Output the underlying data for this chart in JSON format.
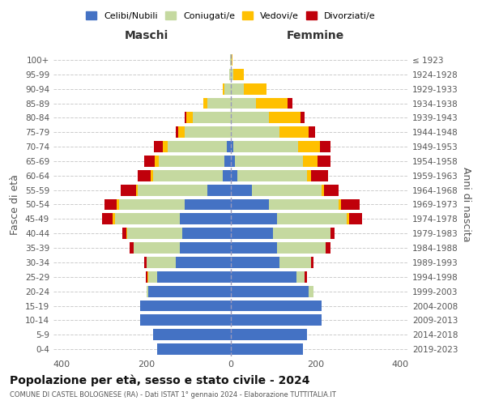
{
  "age_groups": [
    "0-4",
    "5-9",
    "10-14",
    "15-19",
    "20-24",
    "25-29",
    "30-34",
    "35-39",
    "40-44",
    "45-49",
    "50-54",
    "55-59",
    "60-64",
    "65-69",
    "70-74",
    "75-79",
    "80-84",
    "85-89",
    "90-94",
    "95-99",
    "100+"
  ],
  "birth_years": [
    "2019-2023",
    "2014-2018",
    "2009-2013",
    "2004-2008",
    "1999-2003",
    "1994-1998",
    "1989-1993",
    "1984-1988",
    "1979-1983",
    "1974-1978",
    "1969-1973",
    "1964-1968",
    "1959-1963",
    "1954-1958",
    "1949-1953",
    "1944-1948",
    "1939-1943",
    "1934-1938",
    "1929-1933",
    "1924-1928",
    "≤ 1923"
  ],
  "maschi": {
    "celibi": [
      175,
      185,
      215,
      215,
      195,
      175,
      130,
      120,
      115,
      120,
      110,
      55,
      20,
      15,
      10,
      0,
      0,
      0,
      0,
      0,
      0
    ],
    "coniugati": [
      0,
      0,
      0,
      0,
      5,
      20,
      70,
      110,
      130,
      155,
      155,
      165,
      165,
      155,
      140,
      110,
      90,
      55,
      15,
      3,
      2
    ],
    "vedovi": [
      0,
      0,
      0,
      0,
      0,
      2,
      0,
      0,
      2,
      5,
      5,
      5,
      5,
      10,
      12,
      15,
      15,
      10,
      5,
      1,
      0
    ],
    "divorziati": [
      0,
      0,
      0,
      0,
      0,
      5,
      5,
      10,
      10,
      25,
      30,
      35,
      30,
      25,
      20,
      5,
      5,
      0,
      0,
      0,
      0
    ]
  },
  "femmine": {
    "nubili": [
      170,
      180,
      215,
      215,
      185,
      155,
      115,
      110,
      100,
      110,
      90,
      50,
      15,
      10,
      5,
      0,
      0,
      0,
      0,
      0,
      0
    ],
    "coniugate": [
      0,
      0,
      0,
      0,
      10,
      20,
      75,
      115,
      135,
      165,
      165,
      165,
      165,
      160,
      155,
      115,
      90,
      60,
      30,
      5,
      2
    ],
    "vedove": [
      0,
      0,
      0,
      0,
      0,
      0,
      0,
      0,
      0,
      5,
      5,
      5,
      10,
      35,
      50,
      70,
      75,
      75,
      55,
      25,
      2
    ],
    "divorziate": [
      0,
      0,
      0,
      0,
      0,
      5,
      5,
      10,
      10,
      30,
      45,
      35,
      40,
      30,
      25,
      15,
      10,
      10,
      0,
      0,
      0
    ]
  },
  "color_celibi": "#4472c4",
  "color_coniugati": "#c5d9a0",
  "color_vedovi": "#ffc000",
  "color_divorziati": "#c0000b",
  "xlim": 420,
  "title": "Popolazione per età, sesso e stato civile - 2024",
  "subtitle": "COMUNE DI CASTEL BOLOGNESE (RA) - Dati ISTAT 1° gennaio 2024 - Elaborazione TUTTITALIA.IT",
  "ylabel": "Fasce di età",
  "ylabel_right": "Anni di nascita"
}
